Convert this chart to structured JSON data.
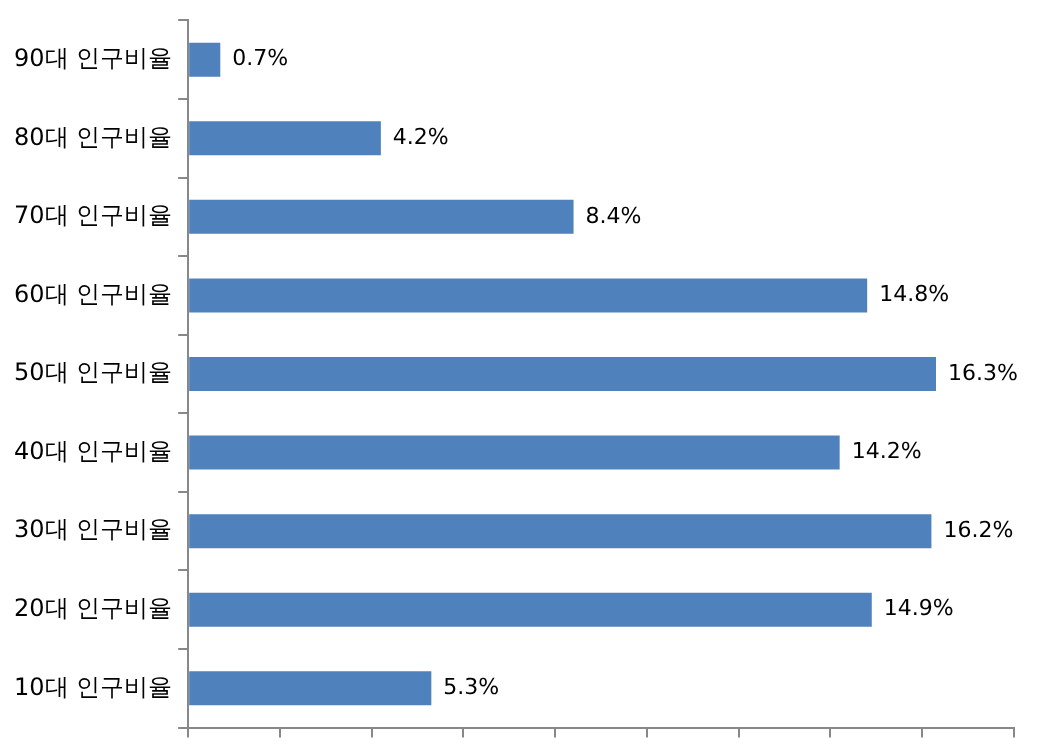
{
  "chart_data": {
    "type": "bar",
    "orientation": "horizontal",
    "categories": [
      "90대 인구비율",
      "80대 인구비율",
      "70대 인구비율",
      "60대 인구비율",
      "50대 인구비율",
      "40대 인구비율",
      "30대 인구비율",
      "20대 인구비율",
      "10대 인구비율"
    ],
    "values": [
      0.7,
      4.2,
      8.4,
      14.8,
      16.3,
      14.2,
      16.2,
      14.9,
      5.3
    ],
    "value_labels": [
      "0.7%",
      "4.2%",
      "8.4%",
      "14.8%",
      "16.3%",
      "14.2%",
      "16.2%",
      "14.9%",
      "5.3%"
    ],
    "color": "#4f81bd",
    "tick_labels": "y",
    "grid": false,
    "legend": false
  }
}
